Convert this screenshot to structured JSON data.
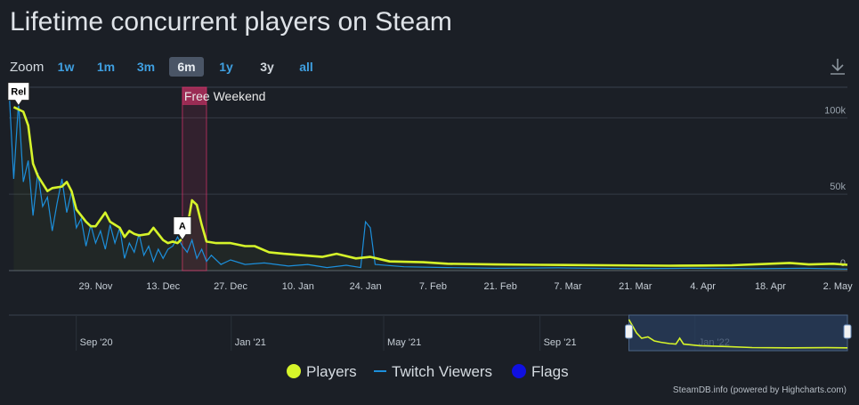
{
  "title": "Lifetime concurrent players on Steam",
  "zoom": {
    "label": "Zoom",
    "buttons": [
      "1w",
      "1m",
      "3m",
      "6m",
      "1y",
      "3y",
      "all"
    ],
    "active": "6m"
  },
  "icons": {
    "download": "download-icon"
  },
  "colors": {
    "players": "#d6f42a",
    "twitch": "#1c8fdb",
    "flags": "#1010e0",
    "free_weekend_band": "#e0336e",
    "background": "#1b1f26",
    "navigator_selection": "#2a3f5f"
  },
  "legend": [
    {
      "name": "Players",
      "marker": "dot",
      "color": "#d6f42a"
    },
    {
      "name": "Twitch Viewers",
      "marker": "line",
      "color": "#1c8fdb"
    },
    {
      "name": "Flags",
      "marker": "dot",
      "color": "#1010e0"
    }
  ],
  "credits": "SteamDB.info (powered by Highcharts.com)",
  "chart_data": {
    "type": "line",
    "x_axis": {
      "type": "datetime",
      "min": "2020-11-11",
      "max": "2021-05-04",
      "tick_labels": [
        "29. Nov",
        "13. Dec",
        "27. Dec",
        "10. Jan",
        "24. Jan",
        "7. Feb",
        "21. Feb",
        "7. Mar",
        "21. Mar",
        "4. Apr",
        "18. Apr",
        "2. May"
      ],
      "ticks": [
        "2020-11-29",
        "2020-12-13",
        "2020-12-27",
        "2021-01-10",
        "2021-01-24",
        "2021-02-07",
        "2021-02-21",
        "2021-03-07",
        "2021-03-21",
        "2021-04-04",
        "2021-04-18",
        "2021-05-02"
      ]
    },
    "y_axis": {
      "min": 0,
      "max": 120000,
      "tick_labels": [
        "0",
        "50k",
        "100k"
      ],
      "ticks": [
        0,
        50000,
        100000
      ],
      "grid": true
    },
    "plot_band": {
      "label": "Free Weekend",
      "from": "2020-12-17",
      "to": "2020-12-22"
    },
    "flags": [
      {
        "label": "Rel",
        "date": "2020-11-13",
        "value": 108000
      },
      {
        "label": "A",
        "date": "2020-12-17",
        "value": 20000
      }
    ],
    "series": [
      {
        "name": "Players",
        "points": [
          [
            "2020-11-12",
            107000
          ],
          [
            "2020-11-14",
            104000
          ],
          [
            "2020-11-15",
            95000
          ],
          [
            "2020-11-16",
            70000
          ],
          [
            "2020-11-17",
            62000
          ],
          [
            "2020-11-19",
            52000
          ],
          [
            "2020-11-20",
            54000
          ],
          [
            "2020-11-22",
            55000
          ],
          [
            "2020-11-23",
            58000
          ],
          [
            "2020-11-24",
            52000
          ],
          [
            "2020-11-25",
            40000
          ],
          [
            "2020-11-27",
            32000
          ],
          [
            "2020-11-28",
            29000
          ],
          [
            "2020-11-29",
            29000
          ],
          [
            "2020-12-01",
            38000
          ],
          [
            "2020-12-02",
            32000
          ],
          [
            "2020-12-04",
            28000
          ],
          [
            "2020-12-05",
            22000
          ],
          [
            "2020-12-06",
            26000
          ],
          [
            "2020-12-07",
            24000
          ],
          [
            "2020-12-08",
            23000
          ],
          [
            "2020-12-10",
            24000
          ],
          [
            "2020-12-11",
            28000
          ],
          [
            "2020-12-12",
            24000
          ],
          [
            "2020-12-13",
            20000
          ],
          [
            "2020-12-14",
            18000
          ],
          [
            "2020-12-15",
            19000
          ],
          [
            "2020-12-16",
            18000
          ],
          [
            "2020-12-17",
            21000
          ],
          [
            "2020-12-18",
            28000
          ],
          [
            "2020-12-19",
            46000
          ],
          [
            "2020-12-20",
            43000
          ],
          [
            "2020-12-21",
            30000
          ],
          [
            "2020-12-22",
            19000
          ],
          [
            "2020-12-24",
            18000
          ],
          [
            "2020-12-27",
            18000
          ],
          [
            "2020-12-30",
            16000
          ],
          [
            "2021-01-01",
            16000
          ],
          [
            "2021-01-04",
            12000
          ],
          [
            "2021-01-07",
            11000
          ],
          [
            "2021-01-11",
            10000
          ],
          [
            "2021-01-15",
            9000
          ],
          [
            "2021-01-18",
            11000
          ],
          [
            "2021-01-22",
            8000
          ],
          [
            "2021-01-25",
            9000
          ],
          [
            "2021-01-29",
            6000
          ],
          [
            "2021-02-05",
            5500
          ],
          [
            "2021-02-10",
            4500
          ],
          [
            "2021-02-20",
            4000
          ],
          [
            "2021-03-01",
            3800
          ],
          [
            "2021-03-15",
            3500
          ],
          [
            "2021-03-28",
            3200
          ],
          [
            "2021-04-04",
            3300
          ],
          [
            "2021-04-10",
            3500
          ],
          [
            "2021-04-18",
            4500
          ],
          [
            "2021-04-22",
            5000
          ],
          [
            "2021-04-26",
            4000
          ],
          [
            "2021-05-01",
            4500
          ],
          [
            "2021-05-04",
            3800
          ]
        ]
      },
      {
        "name": "Twitch Viewers",
        "points": [
          [
            "2020-11-11",
            120000
          ],
          [
            "2020-11-12",
            60000
          ],
          [
            "2020-11-13",
            110000
          ],
          [
            "2020-11-14",
            58000
          ],
          [
            "2020-11-15",
            72000
          ],
          [
            "2020-11-16",
            36000
          ],
          [
            "2020-11-17",
            64000
          ],
          [
            "2020-11-18",
            42000
          ],
          [
            "2020-11-19",
            48000
          ],
          [
            "2020-11-20",
            26000
          ],
          [
            "2020-11-21",
            44000
          ],
          [
            "2020-11-22",
            60000
          ],
          [
            "2020-11-23",
            38000
          ],
          [
            "2020-11-24",
            52000
          ],
          [
            "2020-11-25",
            28000
          ],
          [
            "2020-11-26",
            34000
          ],
          [
            "2020-11-27",
            16000
          ],
          [
            "2020-11-28",
            30000
          ],
          [
            "2020-11-29",
            18000
          ],
          [
            "2020-11-30",
            26000
          ],
          [
            "2020-12-01",
            14000
          ],
          [
            "2020-12-02",
            30000
          ],
          [
            "2020-12-03",
            18000
          ],
          [
            "2020-12-04",
            28000
          ],
          [
            "2020-12-05",
            8000
          ],
          [
            "2020-12-06",
            18000
          ],
          [
            "2020-12-07",
            12000
          ],
          [
            "2020-12-08",
            24000
          ],
          [
            "2020-12-09",
            10000
          ],
          [
            "2020-12-10",
            16000
          ],
          [
            "2020-12-11",
            6000
          ],
          [
            "2020-12-12",
            14000
          ],
          [
            "2020-12-13",
            8000
          ],
          [
            "2020-12-14",
            14000
          ],
          [
            "2020-12-15",
            16000
          ],
          [
            "2020-12-16",
            22000
          ],
          [
            "2020-12-17",
            16000
          ],
          [
            "2020-12-18",
            12000
          ],
          [
            "2020-12-19",
            20000
          ],
          [
            "2020-12-20",
            8000
          ],
          [
            "2020-12-21",
            14000
          ],
          [
            "2020-12-22",
            6000
          ],
          [
            "2020-12-23",
            10000
          ],
          [
            "2020-12-25",
            4000
          ],
          [
            "2020-12-27",
            7000
          ],
          [
            "2020-12-30",
            4000
          ],
          [
            "2021-01-03",
            5000
          ],
          [
            "2021-01-08",
            3000
          ],
          [
            "2021-01-12",
            4000
          ],
          [
            "2021-01-16",
            2000
          ],
          [
            "2021-01-20",
            3500
          ],
          [
            "2021-01-23",
            2000
          ],
          [
            "2021-01-24",
            32000
          ],
          [
            "2021-01-25",
            28000
          ],
          [
            "2021-01-26",
            4000
          ],
          [
            "2021-02-01",
            2500
          ],
          [
            "2021-02-10",
            2000
          ],
          [
            "2021-02-20",
            1500
          ],
          [
            "2021-03-05",
            1800
          ],
          [
            "2021-03-20",
            1200
          ],
          [
            "2021-04-01",
            1500
          ],
          [
            "2021-04-15",
            1200
          ],
          [
            "2021-04-25",
            1500
          ],
          [
            "2021-05-04",
            1000
          ]
        ]
      }
    ],
    "navigator": {
      "tick_labels": [
        "Sep '20",
        "Jan '21",
        "May '21",
        "Sep '21",
        "Jan '22"
      ],
      "ticks": [
        "2020-09-01",
        "2021-01-01",
        "2021-05-01",
        "2021-09-01",
        "2022-01-01"
      ],
      "min": "2020-07-10",
      "max": "2022-05-01",
      "selection": {
        "from": "2021-11-10",
        "to": "2022-05-01"
      },
      "points": [
        [
          "2021-11-10",
          110000
        ],
        [
          "2021-11-13",
          85000
        ],
        [
          "2021-11-16",
          60000
        ],
        [
          "2021-11-20",
          40000
        ],
        [
          "2021-11-25",
          45000
        ],
        [
          "2021-11-30",
          30000
        ],
        [
          "2021-12-05",
          25000
        ],
        [
          "2021-12-12",
          20000
        ],
        [
          "2021-12-17",
          18000
        ],
        [
          "2021-12-20",
          40000
        ],
        [
          "2021-12-23",
          18000
        ],
        [
          "2022-01-05",
          12000
        ],
        [
          "2022-01-25",
          9000
        ],
        [
          "2022-02-15",
          5000
        ],
        [
          "2022-03-15",
          4000
        ],
        [
          "2022-04-15",
          4500
        ],
        [
          "2022-05-01",
          4000
        ]
      ]
    }
  }
}
